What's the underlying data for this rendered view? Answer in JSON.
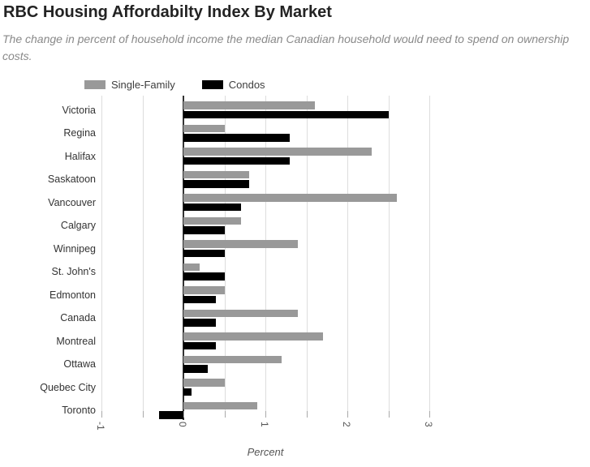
{
  "header": {
    "title": "RBC Housing Affordabilty Index By Market",
    "subtitle": "The change in percent of household income the median Canadian household would need to spend on ownership costs."
  },
  "chart_data": {
    "type": "bar",
    "orientation": "horizontal",
    "title": "RBC Housing Affordabilty Index By Market",
    "subtitle": "The change in percent of household income the median Canadian household would need to spend on ownership costs.",
    "xlabel": "Percent",
    "ylabel": "",
    "xlim": [
      -1,
      3
    ],
    "gridline_step": 0.5,
    "tick_values": [
      -1,
      0,
      1,
      2,
      3
    ],
    "grid": "vertical",
    "legend_position": "top",
    "categories": [
      "Victoria",
      "Regina",
      "Halifax",
      "Saskatoon",
      "Vancouver",
      "Calgary",
      "Winnipeg",
      "St. John's",
      "Edmonton",
      "Canada",
      "Montreal",
      "Ottawa",
      "Quebec City",
      "Toronto"
    ],
    "series": [
      {
        "name": "Single-Family",
        "color": "#999999",
        "values": [
          1.6,
          0.5,
          2.3,
          0.8,
          2.6,
          0.7,
          1.4,
          0.2,
          0.5,
          1.4,
          1.7,
          1.2,
          0.5,
          0.9
        ]
      },
      {
        "name": "Condos",
        "color": "#000000",
        "values": [
          2.5,
          1.3,
          1.3,
          0.8,
          0.7,
          0.5,
          0.5,
          0.5,
          0.4,
          0.4,
          0.4,
          0.3,
          0.1,
          -0.3
        ]
      }
    ]
  },
  "colors": {
    "single_family": "#999999",
    "condos": "#000000",
    "gridline": "#dddddd",
    "zero_axis": "#333333",
    "title_text": "#232323",
    "subtitle_text": "#898989"
  }
}
